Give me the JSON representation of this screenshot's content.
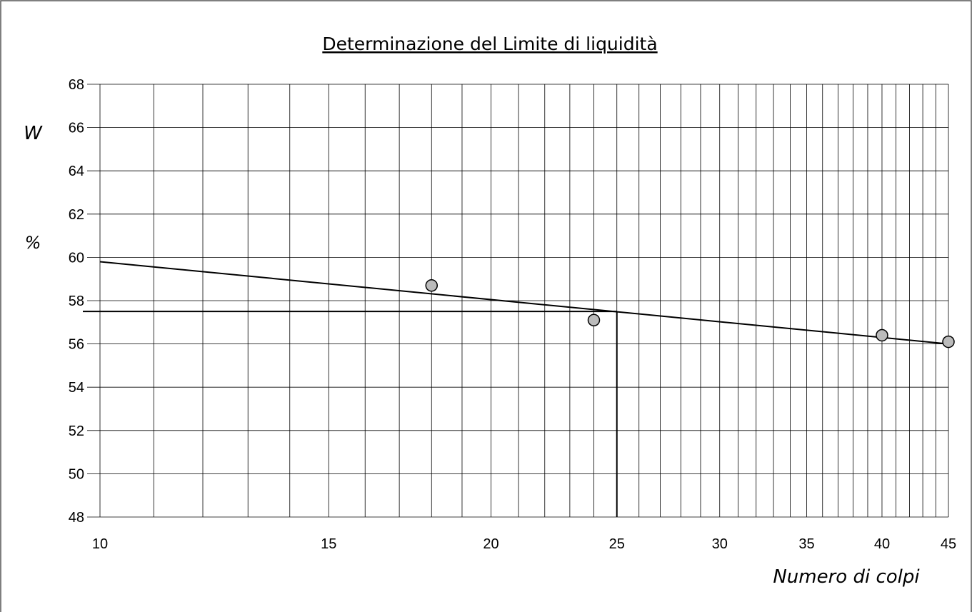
{
  "chart_data": {
    "type": "scatter",
    "title": "Determinazione del Limite di liquidità",
    "y_label_top": "W",
    "y_label_bottom": "%",
    "x_label": "Numero di colpi",
    "log_x": true,
    "grid": true,
    "xlim": [
      10,
      45
    ],
    "ylim": [
      48,
      68
    ],
    "xticks": [
      10,
      15,
      20,
      25,
      30,
      35,
      40,
      45
    ],
    "xgrid": [
      10,
      11,
      12,
      13,
      14,
      15,
      16,
      17,
      18,
      19,
      20,
      21,
      22,
      23,
      24,
      25,
      26,
      27,
      28,
      29,
      30,
      31,
      32,
      33,
      34,
      35,
      36,
      37,
      38,
      39,
      40,
      41,
      42,
      43,
      44,
      45
    ],
    "yticks": [
      48,
      50,
      52,
      54,
      56,
      58,
      60,
      62,
      64,
      66,
      68
    ],
    "points": {
      "x": [
        18,
        24,
        40,
        45
      ],
      "values": [
        58.7,
        57.1,
        56.4,
        56.1
      ],
      "color": "#bbbbbb"
    },
    "fit_line": {
      "x": [
        10,
        45
      ],
      "values": [
        59.8,
        56.0
      ]
    },
    "liquid_limit": {
      "x": 25,
      "y": 57.5
    }
  }
}
